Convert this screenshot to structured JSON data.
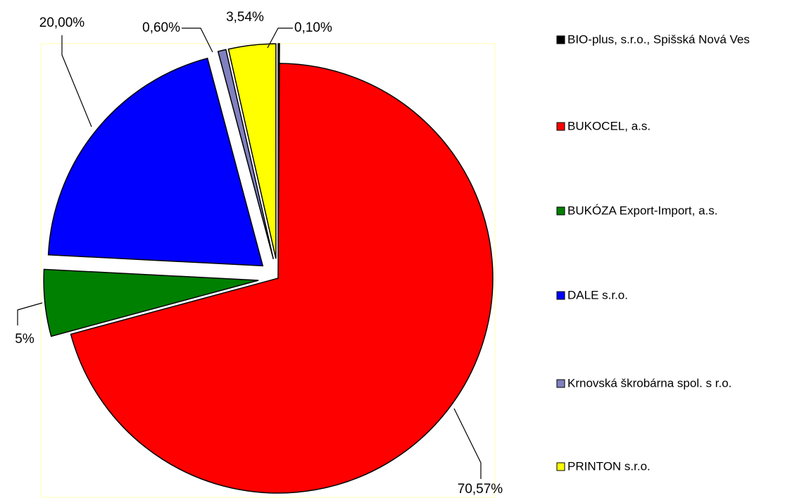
{
  "chart_data": {
    "type": "pie",
    "categories": [
      "BIO-plus, s.r.o., Spišská Nová Ves",
      "BUKOCEL, a.s.",
      "BUKÓZA Export-Import, a.s.",
      "DALE s.r.o.",
      "Krnovská škrobárna spol. s r.o.",
      "PRINTON s.r.o."
    ],
    "values": [
      0.1,
      70.57,
      5,
      20.0,
      0.6,
      3.54
    ],
    "value_labels": [
      "0,10%",
      "70,57%",
      "5%",
      "20,00%",
      "0,60%",
      "3,54%"
    ],
    "colors": [
      "#000000",
      "#ff0000",
      "#008000",
      "#0000ff",
      "#8080c0",
      "#ffff00"
    ],
    "legend": "right"
  }
}
